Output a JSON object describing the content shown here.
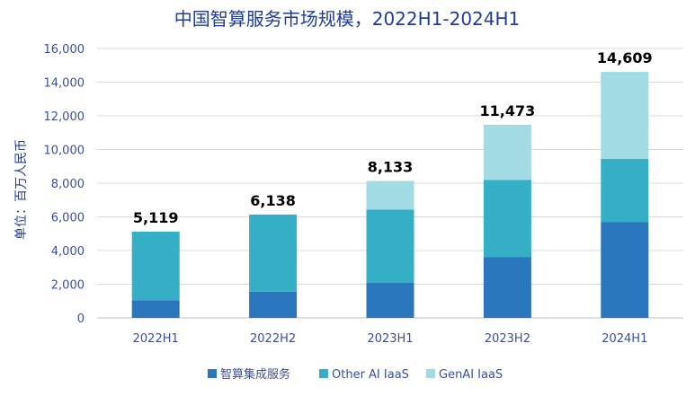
{
  "chart_data": {
    "type": "bar",
    "stacked": true,
    "title": "中国智算服务市场规模，2022H1-2024H1",
    "ylabel": "单位：百万人民币",
    "xlabel": "",
    "categories": [
      "2022H1",
      "2022H2",
      "2023H1",
      "2023H2",
      "2024H1"
    ],
    "series": [
      {
        "name": "智算集成服务",
        "color": "#2a77bd",
        "values": [
          1050,
          1560,
          2100,
          3600,
          5700
        ]
      },
      {
        "name": "Other AI IaaS",
        "color": "#34afc6",
        "values": [
          4069,
          4578,
          4333,
          4600,
          3750
        ]
      },
      {
        "name": "GenAI IaaS",
        "color": "#a3dbe5",
        "values": [
          0,
          0,
          1700,
          3273,
          5159
        ]
      }
    ],
    "totals": [
      5119,
      6138,
      8133,
      11473,
      14609
    ],
    "total_labels": [
      "5,119",
      "6,138",
      "8,133",
      "11,473",
      "14,609"
    ],
    "ylim": [
      0,
      16000
    ],
    "yticks": [
      0,
      2000,
      4000,
      6000,
      8000,
      10000,
      12000,
      14000,
      16000
    ],
    "ytick_labels": [
      "0",
      "2,000",
      "4,000",
      "6,000",
      "8,000",
      "10,000",
      "12,000",
      "14,000",
      "16,000"
    ],
    "grid": true,
    "legend_position": "bottom",
    "colors": {
      "title": "#1f3c9b",
      "ylabel": "#1f3c9b",
      "tick_text": "#3a4ea0",
      "total_text": "#000000",
      "grid": "#d9d9d9",
      "axis": "#bfbfbf"
    }
  }
}
